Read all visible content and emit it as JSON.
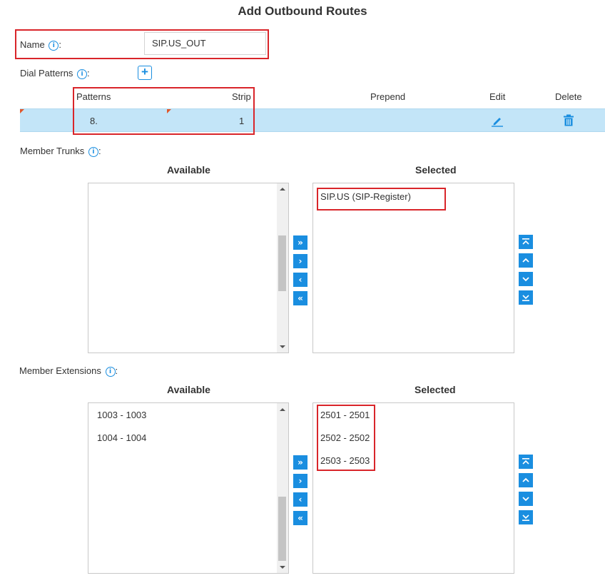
{
  "title": "Add Outbound Routes",
  "name_field": {
    "label": "Name",
    "colon": ":",
    "value": "SIP.US_OUT"
  },
  "dial_patterns": {
    "label": "Dial Patterns",
    "colon": ":",
    "columns": [
      "Patterns",
      "Strip",
      "Prepend",
      "Edit",
      "Delete"
    ],
    "rows": [
      {
        "pattern": "8.",
        "strip": "1",
        "prepend": ""
      }
    ]
  },
  "member_trunks": {
    "label": "Member Trunks",
    "colon": ":",
    "available_title": "Available",
    "selected_title": "Selected",
    "available": [],
    "selected": [
      "SIP.US (SIP-Register)"
    ]
  },
  "member_extensions": {
    "label": "Member Extensions",
    "colon": ":",
    "available_title": "Available",
    "selected_title": "Selected",
    "available": [
      "1003 - 1003",
      "1004 - 1004"
    ],
    "selected": [
      "2501 - 2501",
      "2502 - 2502",
      "2503 - 2503"
    ]
  },
  "icons": {
    "info": "info-circle-icon",
    "add": "plus-square-icon",
    "edit": "pencil-icon",
    "delete": "trash-icon",
    "move_all_right": "double-chevron-right-icon",
    "move_right": "chevron-right-icon",
    "move_left": "chevron-left-icon",
    "move_all_left": "double-chevron-left-icon",
    "move_top": "move-top-icon",
    "move_up": "chevron-up-icon",
    "move_down": "chevron-down-icon",
    "move_bottom": "move-bottom-icon"
  },
  "colors": {
    "accent": "#1a8ee0",
    "highlight": "#d9252a",
    "row_selected": "#c3e5f8"
  }
}
